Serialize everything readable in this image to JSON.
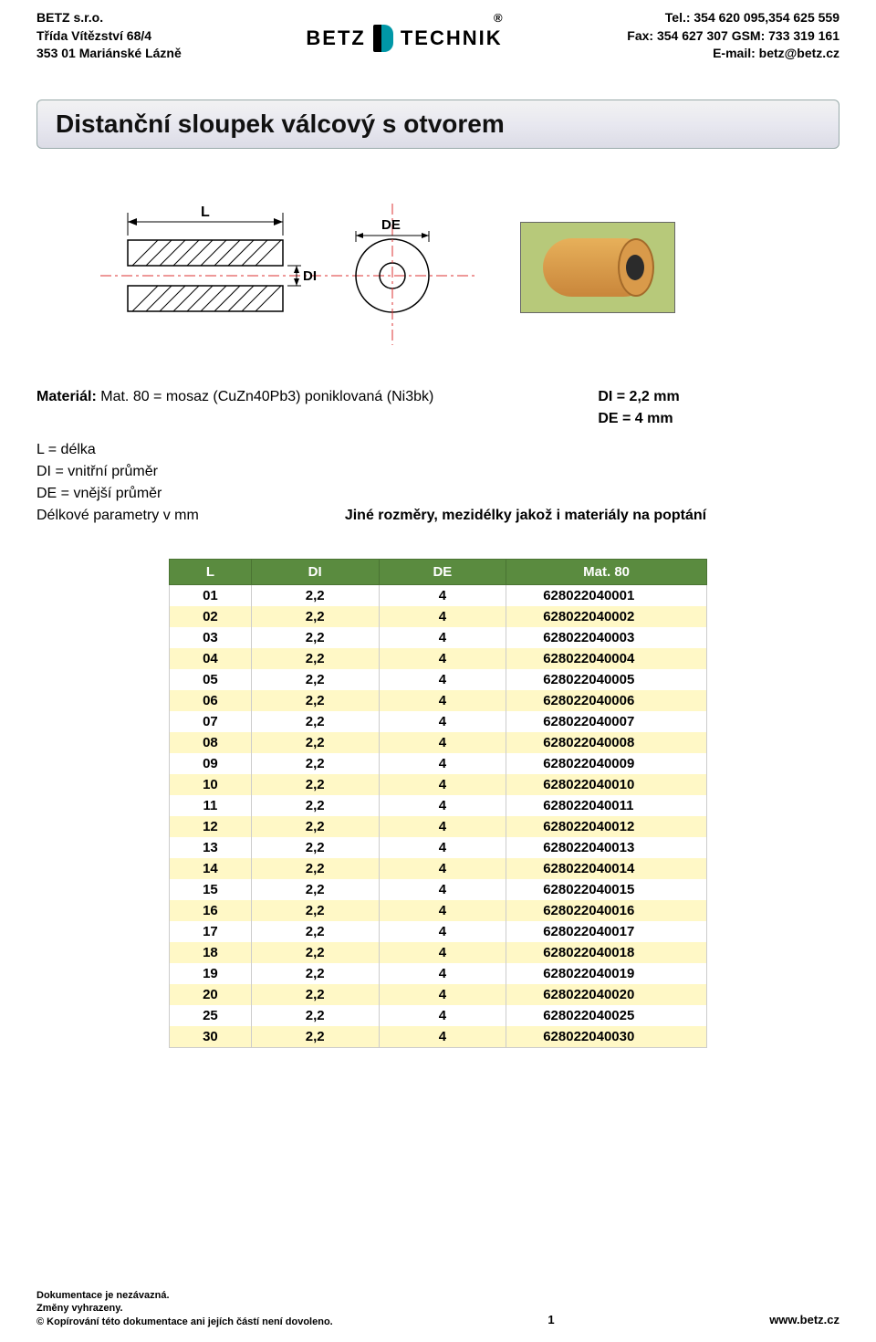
{
  "header": {
    "company": "BETZ s.r.o.",
    "address1": "Třída Vítězství 68/4",
    "address2": "353 01 Mariánské Lázně",
    "tel": "Tel.: 354 620 095,354 625 559",
    "fax": "Fax: 354 627 307 GSM: 733 319 161",
    "email": "E-mail: betz@betz.cz",
    "logo_left": "BETZ",
    "logo_right": "TECHNIK",
    "reg": "®"
  },
  "title": "Distanční sloupek válcový s otvorem",
  "diagram": {
    "L_label": "L",
    "DE_label": "DE",
    "DI_label": "DI"
  },
  "specs": {
    "material_label": "Materiál:",
    "material_value": "Mat. 80 = mosaz (CuZn40Pb3) poniklovaná (Ni3bk)",
    "di_line": "DI = 2,2 mm",
    "de_line": "DE = 4 mm",
    "l_def": "L = délka",
    "di_def": "DI = vnitřní průměr",
    "de_def": "DE = vnější průměr",
    "params_label": "Délkové parametry v mm",
    "other_dims": "Jiné rozměry, mezidélky jakož i materiály na poptání"
  },
  "table": {
    "columns": [
      "L",
      "DI",
      "DE",
      "Mat. 80"
    ],
    "header_bg": "#5a8b3f",
    "header_fg": "#ffffff",
    "row_odd_bg": "#ffffff",
    "row_even_bg": "#fff8c6",
    "rows": [
      [
        "01",
        "2,2",
        "4",
        "628022040001"
      ],
      [
        "02",
        "2,2",
        "4",
        "628022040002"
      ],
      [
        "03",
        "2,2",
        "4",
        "628022040003"
      ],
      [
        "04",
        "2,2",
        "4",
        "628022040004"
      ],
      [
        "05",
        "2,2",
        "4",
        "628022040005"
      ],
      [
        "06",
        "2,2",
        "4",
        "628022040006"
      ],
      [
        "07",
        "2,2",
        "4",
        "628022040007"
      ],
      [
        "08",
        "2,2",
        "4",
        "628022040008"
      ],
      [
        "09",
        "2,2",
        "4",
        "628022040009"
      ],
      [
        "10",
        "2,2",
        "4",
        "628022040010"
      ],
      [
        "11",
        "2,2",
        "4",
        "628022040011"
      ],
      [
        "12",
        "2,2",
        "4",
        "628022040012"
      ],
      [
        "13",
        "2,2",
        "4",
        "628022040013"
      ],
      [
        "14",
        "2,2",
        "4",
        "628022040014"
      ],
      [
        "15",
        "2,2",
        "4",
        "628022040015"
      ],
      [
        "16",
        "2,2",
        "4",
        "628022040016"
      ],
      [
        "17",
        "2,2",
        "4",
        "628022040017"
      ],
      [
        "18",
        "2,2",
        "4",
        "628022040018"
      ],
      [
        "19",
        "2,2",
        "4",
        "628022040019"
      ],
      [
        "20",
        "2,2",
        "4",
        "628022040020"
      ],
      [
        "25",
        "2,2",
        "4",
        "628022040025"
      ],
      [
        "30",
        "2,2",
        "4",
        "628022040030"
      ]
    ]
  },
  "footer": {
    "line1": "Dokumentace je nezávazná.",
    "line2": "Změny vyhrazeny.",
    "line3": "© Kopírování této dokumentace ani jejích částí není dovoleno.",
    "page_number": "1",
    "website": "www.betz.cz"
  }
}
